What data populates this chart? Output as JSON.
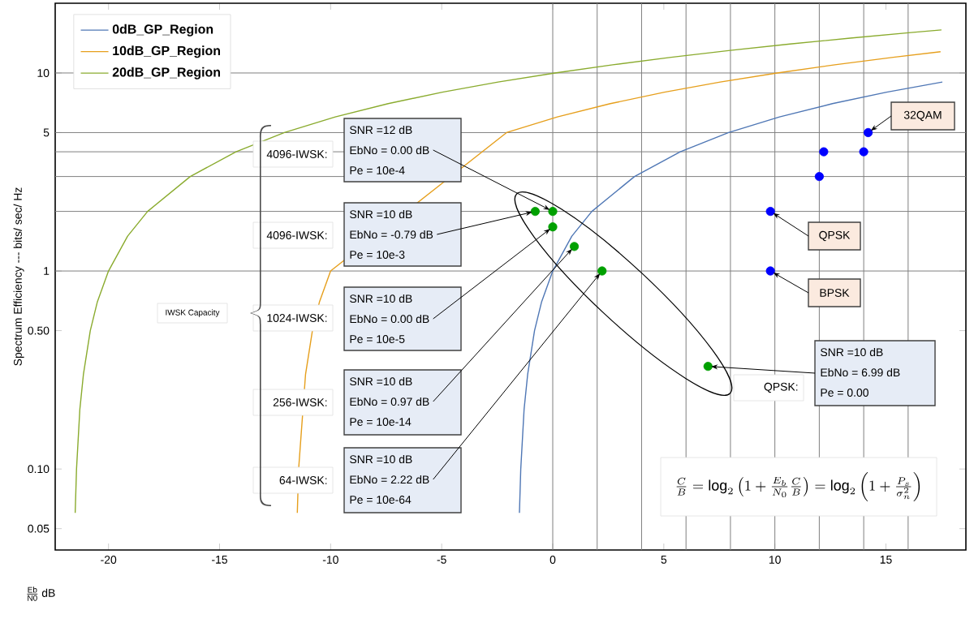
{
  "chart_data": {
    "type": "line",
    "xlabel": "\\frac{\\mathrm{Eb}}{\\mathrm{N0}}\\,\\mathrm{dB}",
    "ylabel": "Spectrum Efficiency --- bits/ sec/ Hz",
    "xlim": [
      -22.4,
      18.6
    ],
    "ylim": [
      0.039,
      22.5
    ],
    "log": "y",
    "xticks": [
      -20,
      -15,
      -10,
      -5,
      0,
      5,
      10,
      15
    ],
    "yticks": [
      0.05,
      {
        "value": 0.1,
        "label": "0.10"
      },
      {
        "value": 0.5,
        "label": "0.50"
      },
      1,
      5,
      10
    ],
    "legend": "top left",
    "series": [
      {
        "name": "0dB_GP_Region",
        "color": "#4f77b5",
        "x": [
          -1.5,
          -1.44,
          -1.29,
          -1.13,
          -0.82,
          -0.5,
          0,
          0.86,
          1.76,
          3.68,
          5.74,
          7.92,
          10.21,
          12.59,
          15.03,
          17.54
        ],
        "values": [
          0.06,
          0.1,
          0.2,
          0.3,
          0.5,
          0.7,
          1,
          1.5,
          2,
          3,
          4,
          5,
          6,
          7,
          8,
          9
        ]
      },
      {
        "name": "10dB_GP_Region",
        "color": "#e69f1c",
        "x": [
          -11.5,
          -11.44,
          -11.29,
          -11.13,
          -10.82,
          -10.5,
          -10,
          -9.14,
          -8.24,
          -6.32,
          -4.26,
          -2.08,
          0.21,
          2.59,
          5.03,
          7.54,
          10.1,
          12.7,
          15.33,
          17.46
        ],
        "values": [
          0.06,
          0.1,
          null,
          0.3,
          0.5,
          0.7,
          1,
          null,
          null,
          null,
          null,
          5,
          6,
          7,
          8,
          9,
          10,
          11,
          12,
          12.8
        ]
      },
      {
        "name": "20dB_GP_Region",
        "color": "#8aab2e",
        "x": [
          -21.5,
          -21.44,
          -21.29,
          -21.13,
          -20.82,
          -20.5,
          -20,
          -19.14,
          -18.24,
          -16.32,
          -14.26,
          -12.08,
          -9.79,
          -7.41,
          -4.97,
          -2.46,
          0.1,
          2.7,
          5.33,
          7.99,
          10.68,
          13.39,
          16.12,
          17.5
        ],
        "values": [
          0.06,
          0.1,
          0.2,
          0.3,
          0.5,
          0.7,
          1,
          1.5,
          2,
          3,
          4,
          5,
          6,
          7,
          8,
          9,
          10,
          11,
          12,
          13,
          14,
          15,
          16,
          16.5
        ]
      },
      {
        "type": "scatter",
        "marker": "circle",
        "color": "#00a000",
        "x": [
          -0.79,
          0,
          0,
          0.97,
          2.22,
          6.99
        ],
        "values": [
          2,
          2,
          1.67,
          1.33,
          1,
          0.33
        ]
      },
      {
        "type": "scatter",
        "marker": "circle",
        "color": "#0000ff",
        "x": [
          9.8,
          9.8,
          12,
          12.2,
          14,
          14.2
        ],
        "values": [
          1,
          2,
          3,
          4,
          4,
          5
        ]
      }
    ],
    "ref_lines": [
      {
        "axis": "x",
        "value": 0,
        "color": "#7f7f7f"
      },
      {
        "axis": "x",
        "value": 2,
        "color": "#7f7f7f"
      },
      {
        "axis": "x",
        "value": 4,
        "color": "#7f7f7f"
      },
      {
        "axis": "x",
        "value": 6,
        "color": "#7f7f7f"
      },
      {
        "axis": "x",
        "value": 8,
        "color": "#7f7f7f"
      },
      {
        "axis": "x",
        "value": 10,
        "color": "#7f7f7f"
      },
      {
        "axis": "x",
        "value": 12,
        "color": "#7f7f7f"
      },
      {
        "axis": "x",
        "value": 14,
        "color": "#7f7f7f"
      },
      {
        "axis": "x",
        "value": 16,
        "color": "#7f7f7f"
      },
      {
        "axis": "y",
        "value": 1,
        "color": "#7f7f7f"
      },
      {
        "axis": "y",
        "value": 2,
        "color": "#7f7f7f"
      },
      {
        "axis": "y",
        "value": 3,
        "color": "#7f7f7f"
      },
      {
        "axis": "y",
        "value": 4,
        "color": "#7f7f7f"
      },
      {
        "axis": "y",
        "value": 5,
        "color": "#7f7f7f"
      },
      {
        "axis": "y",
        "value": 10,
        "color": "#7f7f7f"
      }
    ],
    "annotations": [
      "SNR =12 dB",
      {
        "text": "EbNo = 0.00 dB",
        "x": 0,
        "y": 2
      },
      "Pe = 10e-4",
      "SNR =10 dB",
      {
        "text": "EbNo = -0.79 dB",
        "x": -0.79,
        "y": 2
      },
      "Pe = 10e-3",
      "SNR =10 dB",
      {
        "text": "EbNo = 0.00 dB",
        "x": 0,
        "y": 1.67
      },
      "Pe = 10e-5",
      "SNR =10 dB",
      {
        "text": "EbNo = 0.97 dB",
        "x": 0.97,
        "y": 1.33
      },
      "Pe = 10e-14",
      "SNR =10 dB",
      {
        "text": "EbNo = 2.22 dB",
        "x": 2.22,
        "y": 1
      },
      "Pe = 10e-64",
      "SNR =10 dB",
      {
        "text": "EbNo = 6.99 dB",
        "x": 6.99,
        "y": 0.33
      },
      "Pe = 0.00",
      {
        "text": "32QAM",
        "x": 14.2,
        "y": 5
      },
      {
        "text": "QPSK",
        "x": 9.8,
        "y": 2
      },
      {
        "text": "BPSK",
        "x": 9.8,
        "y": 1
      },
      "4096-IWSK:",
      "4096-IWSK:",
      "1024-IWSK:",
      "256-IWSK:",
      "64-IWSK:",
      "IWSK Capacity",
      "QPSK:",
      "\\frac{C}{B}=\\log_{2}\\left(1+\\frac{E_{b}}{N_{0}}\\frac{C}{B}\\right)=\\log_{2}\\left(1+\\frac{P_{s}}{\\sigma_{n}^{2}}\\right)"
    ]
  }
}
